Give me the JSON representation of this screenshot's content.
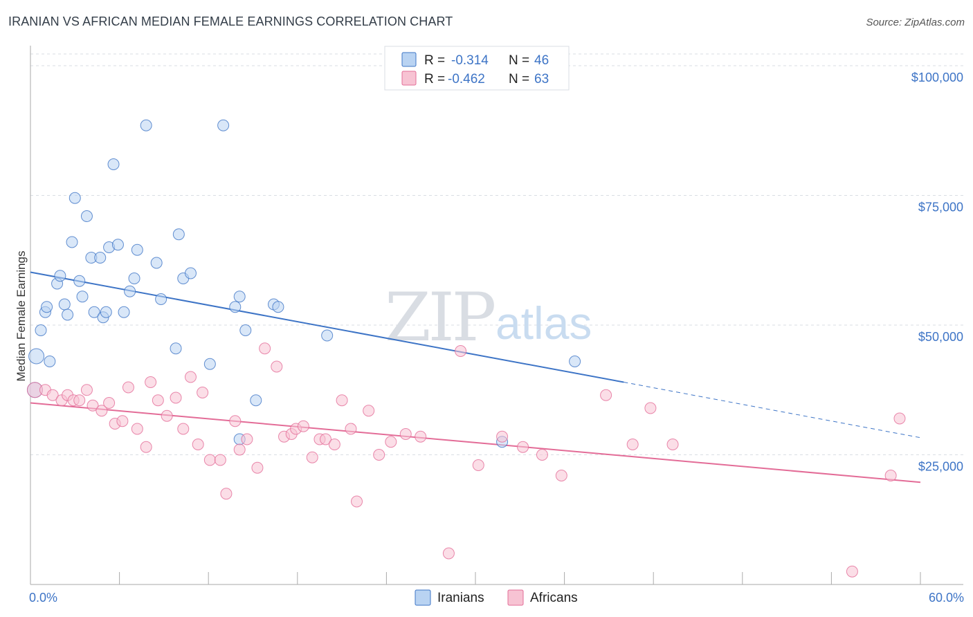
{
  "header": {
    "title": "IRANIAN VS AFRICAN MEDIAN FEMALE EARNINGS CORRELATION CHART",
    "source": "Source: ZipAtlas.com"
  },
  "watermark": {
    "part1": "ZIP",
    "part2": "atlas"
  },
  "colors": {
    "blue": "#3d74c6",
    "blue_fill": "#b9d3f2",
    "pink": "#e36c97",
    "pink_fill": "#f7c3d3",
    "grid": "#d9dde3"
  },
  "legend": {
    "rows": [
      {
        "r_label": "R =",
        "r_value": "-0.314",
        "n_label": "N =",
        "n_value": "46"
      },
      {
        "r_label": "R =",
        "r_value": "-0.462",
        "n_label": "N =",
        "n_value": "63"
      }
    ]
  },
  "bottom_legend": [
    "Iranians",
    "Africans"
  ],
  "chart_data": {
    "type": "scatter",
    "title": "IRANIAN VS AFRICAN MEDIAN FEMALE EARNINGS CORRELATION CHART",
    "xlabel": "",
    "ylabel": "Median Female Earnings",
    "xlim": [
      0,
      60
    ],
    "ylim": [
      0,
      102000
    ],
    "x_tick_labels": [
      "0.0%",
      "60.0%"
    ],
    "y_ticks": [
      25000,
      50000,
      75000,
      100000
    ],
    "y_tick_labels": [
      "$25,000",
      "$50,000",
      "$75,000",
      "$100,000"
    ],
    "grid": true,
    "legend_position": "top-center",
    "series": [
      {
        "name": "Iranians",
        "color": "#3d74c6",
        "points": [
          [
            0.3,
            37500
          ],
          [
            0.4,
            44000
          ],
          [
            0.7,
            49000
          ],
          [
            1.0,
            52500
          ],
          [
            1.3,
            43000
          ],
          [
            1.1,
            53500
          ],
          [
            1.8,
            58000
          ],
          [
            2.0,
            59500
          ],
          [
            2.3,
            54000
          ],
          [
            2.5,
            52000
          ],
          [
            2.8,
            66000
          ],
          [
            3.0,
            74500
          ],
          [
            3.3,
            58500
          ],
          [
            3.5,
            55500
          ],
          [
            3.8,
            71000
          ],
          [
            4.1,
            63000
          ],
          [
            4.3,
            52500
          ],
          [
            4.7,
            63000
          ],
          [
            4.9,
            51500
          ],
          [
            5.1,
            52500
          ],
          [
            5.3,
            65000
          ],
          [
            5.6,
            81000
          ],
          [
            5.9,
            65500
          ],
          [
            6.3,
            52500
          ],
          [
            6.7,
            56500
          ],
          [
            7.0,
            59000
          ],
          [
            7.2,
            64500
          ],
          [
            7.8,
            88500
          ],
          [
            8.5,
            62000
          ],
          [
            8.8,
            55000
          ],
          [
            9.8,
            45500
          ],
          [
            10.0,
            67500
          ],
          [
            10.3,
            59000
          ],
          [
            10.8,
            60000
          ],
          [
            12.1,
            42500
          ],
          [
            13.0,
            88500
          ],
          [
            13.8,
            53500
          ],
          [
            14.1,
            55500
          ],
          [
            14.5,
            49000
          ],
          [
            15.2,
            35500
          ],
          [
            14.1,
            28000
          ],
          [
            16.4,
            54000
          ],
          [
            16.7,
            53500
          ],
          [
            20.0,
            48000
          ],
          [
            31.8,
            27500
          ],
          [
            36.7,
            43000
          ]
        ]
      },
      {
        "name": "Africans",
        "color": "#e36c97",
        "points": [
          [
            0.3,
            37500
          ],
          [
            1.0,
            37500
          ],
          [
            1.5,
            36500
          ],
          [
            2.1,
            35500
          ],
          [
            2.5,
            36500
          ],
          [
            2.9,
            35500
          ],
          [
            3.3,
            35500
          ],
          [
            3.8,
            37500
          ],
          [
            4.2,
            34500
          ],
          [
            4.8,
            33500
          ],
          [
            5.3,
            35000
          ],
          [
            5.7,
            31000
          ],
          [
            6.2,
            31500
          ],
          [
            6.6,
            38000
          ],
          [
            7.2,
            30000
          ],
          [
            7.8,
            26500
          ],
          [
            8.1,
            39000
          ],
          [
            8.6,
            35500
          ],
          [
            9.2,
            32500
          ],
          [
            9.8,
            36000
          ],
          [
            10.3,
            30000
          ],
          [
            10.8,
            40000
          ],
          [
            11.3,
            27000
          ],
          [
            11.6,
            37000
          ],
          [
            12.1,
            24000
          ],
          [
            12.8,
            24000
          ],
          [
            13.2,
            17500
          ],
          [
            13.8,
            31500
          ],
          [
            14.1,
            26000
          ],
          [
            14.6,
            28000
          ],
          [
            15.3,
            22500
          ],
          [
            15.8,
            45500
          ],
          [
            16.6,
            42000
          ],
          [
            17.1,
            28500
          ],
          [
            17.6,
            29000
          ],
          [
            17.9,
            30000
          ],
          [
            18.4,
            30500
          ],
          [
            19.0,
            24500
          ],
          [
            19.5,
            28000
          ],
          [
            19.9,
            28000
          ],
          [
            20.5,
            27000
          ],
          [
            21.0,
            35500
          ],
          [
            21.6,
            30000
          ],
          [
            22.0,
            16000
          ],
          [
            22.8,
            33500
          ],
          [
            23.5,
            25000
          ],
          [
            24.3,
            27500
          ],
          [
            25.3,
            29000
          ],
          [
            26.3,
            28500
          ],
          [
            28.2,
            6000
          ],
          [
            29.0,
            45000
          ],
          [
            30.2,
            23000
          ],
          [
            31.8,
            28500
          ],
          [
            33.2,
            26500
          ],
          [
            34.5,
            25000
          ],
          [
            35.8,
            21000
          ],
          [
            38.8,
            36500
          ],
          [
            40.6,
            27000
          ],
          [
            41.8,
            34000
          ],
          [
            43.3,
            27000
          ],
          [
            55.4,
            2500
          ],
          [
            58.0,
            21000
          ],
          [
            58.6,
            32000
          ]
        ]
      }
    ],
    "trendlines": [
      {
        "series": "Iranians",
        "x": [
          0,
          40
        ],
        "y": [
          60200,
          39000
        ],
        "dashed_extension_to": [
          60,
          28300
        ]
      },
      {
        "series": "Africans",
        "x": [
          0,
          60
        ],
        "y": [
          35000,
          19700
        ]
      }
    ]
  }
}
